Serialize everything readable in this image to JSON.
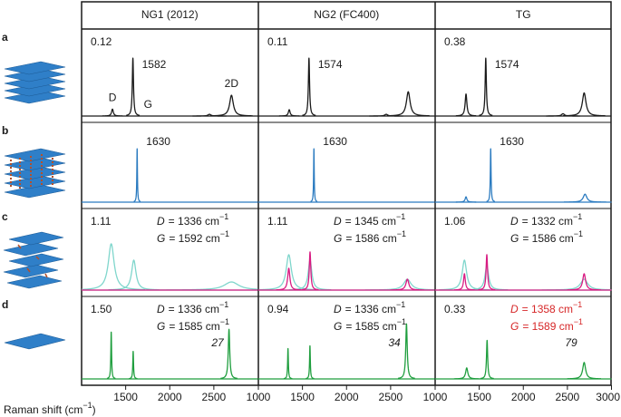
{
  "rows": [
    "a",
    "b",
    "c",
    "d"
  ],
  "xlim": [
    1000,
    3000
  ],
  "x_axis_label": {
    "text": "Raman shift (cm",
    "sup": "−1",
    "end": ")"
  },
  "columns": [
    {
      "title": "NG1 (2012)",
      "xticks": [
        1500,
        2000,
        2500
      ],
      "panels": [
        {
          "ratio": "0.12",
          "peak_label": "1582",
          "traces": [
            {
              "color": "#1a1a1a",
              "peaks": [
                {
                  "position": 1350,
                  "height": 0.12,
                  "width": 12,
                  "name": "D"
                },
                {
                  "position": 1582,
                  "height": 1.0,
                  "width": 8,
                  "name": "G"
                },
                {
                  "position": 2450,
                  "height": 0.03,
                  "width": 20
                },
                {
                  "position": 2700,
                  "height": 0.36,
                  "width": 25,
                  "name": "2D"
                }
              ]
            }
          ]
        },
        {
          "peak_label": "1630",
          "traces": [
            {
              "color": "#2b7bc0",
              "peaks": [
                {
                  "position": 1630,
                  "height": 1.0,
                  "width": 4
                }
              ]
            }
          ]
        },
        {
          "ratio": "1.11",
          "assignments": [
            {
              "symbol": "D",
              "text": "= 1336 cm",
              "sup": "−1"
            },
            {
              "symbol": "G",
              "text": "= 1592 cm",
              "sup": "−1"
            }
          ],
          "assignment_color": "#1a1a1a",
          "traces": [
            {
              "color": "#7fd6cc",
              "peaks": [
                {
                  "position": 1336,
                  "height": 0.85,
                  "width": 40
                },
                {
                  "position": 1592,
                  "height": 0.55,
                  "width": 30
                },
                {
                  "position": 2700,
                  "height": 0.15,
                  "width": 100
                }
              ]
            },
            {
              "color": "#d81b82",
              "peaks": []
            }
          ]
        },
        {
          "ratio": "1.50",
          "assignments": [
            {
              "symbol": "D",
              "text": "= 1336 cm",
              "sup": "−1"
            },
            {
              "symbol": "G",
              "text": "= 1585 cm",
              "sup": "−1"
            }
          ],
          "assignment_color": "#1a1a1a",
          "intensity_label": "27",
          "traces": [
            {
              "color": "#1f9e3e",
              "peaks": [
                {
                  "position": 1336,
                  "height": 0.85,
                  "width": 5
                },
                {
                  "position": 1585,
                  "height": 0.5,
                  "width": 5
                },
                {
                  "position": 2672,
                  "height": 0.9,
                  "width": 10
                }
              ]
            }
          ]
        }
      ]
    },
    {
      "title": "NG2 (FC400)",
      "xticks": [
        1000,
        1500,
        2000,
        2500
      ],
      "panels": [
        {
          "ratio": "0.11",
          "peak_label": "1574",
          "traces": [
            {
              "color": "#1a1a1a",
              "peaks": [
                {
                  "position": 1350,
                  "height": 0.11,
                  "width": 12
                },
                {
                  "position": 1574,
                  "height": 1.0,
                  "width": 8
                },
                {
                  "position": 2450,
                  "height": 0.03,
                  "width": 20
                },
                {
                  "position": 2700,
                  "height": 0.42,
                  "width": 25
                }
              ]
            }
          ]
        },
        {
          "peak_label": "1630",
          "traces": [
            {
              "color": "#2b7bc0",
              "peaks": [
                {
                  "position": 1630,
                  "height": 1.0,
                  "width": 4
                }
              ]
            }
          ]
        },
        {
          "ratio": "1.11",
          "assignments": [
            {
              "symbol": "D",
              "text": "= 1345 cm",
              "sup": "−1"
            },
            {
              "symbol": "G",
              "text": "= 1586 cm",
              "sup": "−1"
            }
          ],
          "assignment_color": "#1a1a1a",
          "traces": [
            {
              "color": "#7fd6cc",
              "peaks": [
                {
                  "position": 1345,
                  "height": 0.65,
                  "width": 35
                },
                {
                  "position": 1586,
                  "height": 0.55,
                  "width": 25
                },
                {
                  "position": 2690,
                  "height": 0.2,
                  "width": 50
                }
              ]
            },
            {
              "color": "#d81b82",
              "peaks": [
                {
                  "position": 1345,
                  "height": 0.4,
                  "width": 15
                },
                {
                  "position": 1586,
                  "height": 0.7,
                  "width": 10
                },
                {
                  "position": 2690,
                  "height": 0.2,
                  "width": 20
                }
              ]
            }
          ]
        },
        {
          "ratio": "0.94",
          "assignments": [
            {
              "symbol": "D",
              "text": "= 1336 cm",
              "sup": "−1"
            },
            {
              "symbol": "G",
              "text": "= 1585 cm",
              "sup": "−1"
            }
          ],
          "assignment_color": "#1a1a1a",
          "intensity_label": "34",
          "traces": [
            {
              "color": "#1f9e3e",
              "peaks": [
                {
                  "position": 1336,
                  "height": 0.55,
                  "width": 5
                },
                {
                  "position": 1585,
                  "height": 0.6,
                  "width": 5
                },
                {
                  "position": 2680,
                  "height": 1.0,
                  "width": 10
                }
              ]
            }
          ]
        }
      ]
    },
    {
      "title": "TG",
      "xticks": [
        1000,
        1500,
        2000,
        2500,
        3000
      ],
      "panels": [
        {
          "ratio": "0.38",
          "peak_label": "1574",
          "traces": [
            {
              "color": "#1a1a1a",
              "peaks": [
                {
                  "position": 1350,
                  "height": 0.38,
                  "width": 12
                },
                {
                  "position": 1574,
                  "height": 1.0,
                  "width": 8
                },
                {
                  "position": 2450,
                  "height": 0.04,
                  "width": 20
                },
                {
                  "position": 2690,
                  "height": 0.4,
                  "width": 25
                }
              ]
            }
          ]
        },
        {
          "peak_label": "1630",
          "traces": [
            {
              "color": "#2b7bc0",
              "peaks": [
                {
                  "position": 1350,
                  "height": 0.1,
                  "width": 12
                },
                {
                  "position": 1630,
                  "height": 1.0,
                  "width": 5
                },
                {
                  "position": 2700,
                  "height": 0.15,
                  "width": 25
                }
              ]
            }
          ]
        },
        {
          "ratio": "1.06",
          "assignments": [
            {
              "symbol": "D",
              "text": "= 1332 cm",
              "sup": "−1"
            },
            {
              "symbol": "G",
              "text": "= 1586 cm",
              "sup": "−1"
            }
          ],
          "assignment_color": "#1a1a1a",
          "traces": [
            {
              "color": "#7fd6cc",
              "peaks": [
                {
                  "position": 1332,
                  "height": 0.55,
                  "width": 30
                },
                {
                  "position": 1586,
                  "height": 0.45,
                  "width": 25
                },
                {
                  "position": 2690,
                  "height": 0.2,
                  "width": 50
                }
              ]
            },
            {
              "color": "#d81b82",
              "peaks": [
                {
                  "position": 1332,
                  "height": 0.3,
                  "width": 12
                },
                {
                  "position": 1586,
                  "height": 0.65,
                  "width": 10
                },
                {
                  "position": 2690,
                  "height": 0.3,
                  "width": 20
                }
              ]
            }
          ]
        },
        {
          "ratio": "0.33",
          "assignments": [
            {
              "symbol": "D",
              "text": "= 1358 cm",
              "sup": "−1"
            },
            {
              "symbol": "G",
              "text": "= 1589 cm",
              "sup": "−1"
            }
          ],
          "assignment_color": "#d62728",
          "intensity_label": "79",
          "traces": [
            {
              "color": "#1f9e3e",
              "peaks": [
                {
                  "position": 1358,
                  "height": 0.2,
                  "width": 15
                },
                {
                  "position": 1589,
                  "height": 0.7,
                  "width": 8
                },
                {
                  "position": 2690,
                  "height": 0.3,
                  "width": 20
                }
              ]
            }
          ]
        }
      ]
    }
  ]
}
